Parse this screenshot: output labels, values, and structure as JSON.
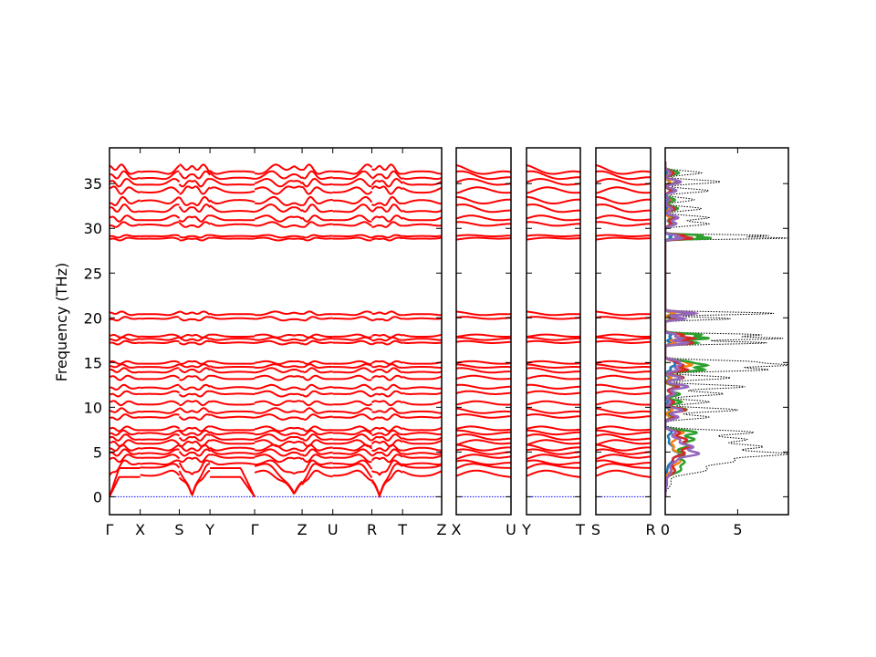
{
  "chart_data": {
    "type": "line",
    "ylabel": "Frequency (THz)",
    "ylim": [
      -2,
      39
    ],
    "y_ticks": [
      0,
      5,
      10,
      15,
      20,
      25,
      30,
      35
    ],
    "y_tick_labels": [
      "0",
      "5",
      "10",
      "15",
      "20",
      "25",
      "30",
      "35"
    ],
    "band_color": "#ff0000",
    "zero_line_color": "#0000ff",
    "panels": [
      {
        "id": "main",
        "ticks": [
          {
            "x": 0,
            "label": "Γ"
          },
          {
            "x": 0.11,
            "label": "X"
          },
          {
            "x": 0.25,
            "label": "S"
          },
          {
            "x": 0.36,
            "label": "Y"
          },
          {
            "x": 0.52,
            "label": "Γ"
          },
          {
            "x": 0.69,
            "label": "Z"
          },
          {
            "x": 0.8,
            "label": "U"
          },
          {
            "x": 0.94,
            "label": "R"
          },
          {
            "x": 1.05,
            "label": "T"
          },
          {
            "x": 1.19,
            "label": "Z"
          }
        ]
      },
      {
        "id": "xu",
        "ticks": [
          {
            "x": 0,
            "label": "X"
          },
          {
            "x": 0.25,
            "label": "U"
          }
        ]
      },
      {
        "id": "yt",
        "ticks": [
          {
            "x": 0,
            "label": "Y"
          },
          {
            "x": 0.25,
            "label": "T"
          }
        ]
      },
      {
        "id": "sr",
        "ticks": [
          {
            "x": 0,
            "label": "S"
          },
          {
            "x": 0.25,
            "label": "R"
          }
        ]
      }
    ],
    "bands": [
      {
        "gamma": 0,
        "edge": 0,
        "amp": 0,
        "mid": 0,
        "ph": 0
      },
      {
        "gamma": 0,
        "edge": 2.2,
        "amp": 0.3,
        "mid": 2.5,
        "ph": 0.3
      },
      {
        "gamma": 0,
        "edge": 3.2,
        "amp": 0.3,
        "mid": 3.1,
        "ph": 1.1
      },
      {
        "gamma": 2.4,
        "edge": 3.8,
        "amp": 0.4,
        "mid": 3.6,
        "ph": 2.0
      },
      {
        "gamma": 4.2,
        "edge": 4.5,
        "amp": 0.4,
        "mid": 4.3,
        "ph": 0.7
      },
      {
        "gamma": 4.9,
        "edge": 5.0,
        "amp": 0.4,
        "mid": 4.9,
        "ph": 1.8
      },
      {
        "gamma": 5.4,
        "edge": 5.5,
        "amp": 0.4,
        "mid": 5.4,
        "ph": 2.6
      },
      {
        "gamma": 6.0,
        "edge": 6.0,
        "amp": 0.4,
        "mid": 6.0,
        "ph": 0.4
      },
      {
        "gamma": 6.6,
        "edge": 6.5,
        "amp": 0.4,
        "mid": 6.6,
        "ph": 1.4
      },
      {
        "gamma": 7.1,
        "edge": 7.2,
        "amp": 0.3,
        "mid": 7.1,
        "ph": 2.3
      },
      {
        "gamma": 7.6,
        "edge": 7.5,
        "amp": 0.3,
        "mid": 7.6,
        "ph": 0.9
      },
      {
        "gamma": 8.8,
        "edge": 9.0,
        "amp": 0.3,
        "mid": 8.9,
        "ph": 1.6
      },
      {
        "gamma": 9.6,
        "edge": 9.5,
        "amp": 0.3,
        "mid": 9.6,
        "ph": 2.9
      },
      {
        "gamma": 10.6,
        "edge": 10.3,
        "amp": 0.3,
        "mid": 10.5,
        "ph": 0.2
      },
      {
        "gamma": 11.4,
        "edge": 11.6,
        "amp": 0.3,
        "mid": 11.5,
        "ph": 1.2
      },
      {
        "gamma": 12.2,
        "edge": 12.3,
        "amp": 0.3,
        "mid": 12.2,
        "ph": 2.1
      },
      {
        "gamma": 13.4,
        "edge": 13.2,
        "amp": 0.3,
        "mid": 13.3,
        "ph": 0.6
      },
      {
        "gamma": 14.2,
        "edge": 14.0,
        "amp": 0.3,
        "mid": 14.1,
        "ph": 1.9
      },
      {
        "gamma": 14.6,
        "edge": 14.5,
        "amp": 0.2,
        "mid": 14.6,
        "ph": 2.7
      },
      {
        "gamma": 15.1,
        "edge": 14.9,
        "amp": 0.2,
        "mid": 15.0,
        "ph": 0.8
      },
      {
        "gamma": 17.2,
        "edge": 17.3,
        "amp": 0.2,
        "mid": 17.2,
        "ph": 1.5
      },
      {
        "gamma": 17.6,
        "edge": 17.7,
        "amp": 0.2,
        "mid": 17.6,
        "ph": 2.4
      },
      {
        "gamma": 18.0,
        "edge": 17.9,
        "amp": 0.2,
        "mid": 18.0,
        "ph": 0.3
      },
      {
        "gamma": 19.8,
        "edge": 20.0,
        "amp": 0.2,
        "mid": 19.9,
        "ph": 1.7
      },
      {
        "gamma": 20.6,
        "edge": 20.4,
        "amp": 0.2,
        "mid": 20.5,
        "ph": 2.8
      },
      {
        "gamma": 28.8,
        "edge": 28.9,
        "amp": 0.15,
        "mid": 28.8,
        "ph": 0.5
      },
      {
        "gamma": 29.1,
        "edge": 29.2,
        "amp": 0.15,
        "mid": 29.1,
        "ph": 1.3
      },
      {
        "gamma": 30.3,
        "edge": 30.5,
        "amp": 0.3,
        "mid": 30.4,
        "ph": 2.2
      },
      {
        "gamma": 31.2,
        "edge": 31.0,
        "amp": 0.4,
        "mid": 31.1,
        "ph": 0.9
      },
      {
        "gamma": 32.3,
        "edge": 32.0,
        "amp": 0.5,
        "mid": 32.2,
        "ph": 1.8
      },
      {
        "gamma": 32.8,
        "edge": 33.2,
        "amp": 0.5,
        "mid": 33.0,
        "ph": 2.6
      },
      {
        "gamma": 34.5,
        "edge": 34.0,
        "amp": 0.5,
        "mid": 34.3,
        "ph": 0.1
      },
      {
        "gamma": 35.2,
        "edge": 35.0,
        "amp": 0.5,
        "mid": 35.1,
        "ph": 1.0
      },
      {
        "gamma": 36.0,
        "edge": 35.7,
        "amp": 0.5,
        "mid": 35.9,
        "ph": 2.0
      },
      {
        "gamma": 37.0,
        "edge": 36.3,
        "amp": 0.5,
        "mid": 36.6,
        "ph": 2.9
      }
    ],
    "dos": {
      "xlim": [
        0,
        8.5
      ],
      "x_ticks": [
        0,
        5
      ],
      "x_tick_labels": [
        "0",
        "5"
      ],
      "total_color": "#000000",
      "projected_colors": [
        "#1f77b4",
        "#ff7f0e",
        "#2ca02c",
        "#d62728",
        "#9467bd"
      ],
      "peaks": [
        {
          "f": 1.5,
          "h": 0.4,
          "w": 0.7
        },
        {
          "f": 3.0,
          "h": 2.8,
          "w": 0.6
        },
        {
          "f": 4.0,
          "h": 4.5,
          "w": 0.5
        },
        {
          "f": 4.8,
          "h": 8.0,
          "w": 0.4
        },
        {
          "f": 5.6,
          "h": 6.5,
          "w": 0.4
        },
        {
          "f": 6.4,
          "h": 5.5,
          "w": 0.4
        },
        {
          "f": 7.2,
          "h": 6.0,
          "w": 0.35
        },
        {
          "f": 8.9,
          "h": 3.0,
          "w": 0.3
        },
        {
          "f": 9.7,
          "h": 5.0,
          "w": 0.3
        },
        {
          "f": 10.6,
          "h": 3.0,
          "w": 0.3
        },
        {
          "f": 11.5,
          "h": 4.0,
          "w": 0.3
        },
        {
          "f": 12.3,
          "h": 5.5,
          "w": 0.3
        },
        {
          "f": 13.3,
          "h": 4.5,
          "w": 0.3
        },
        {
          "f": 14.2,
          "h": 7.0,
          "w": 0.25
        },
        {
          "f": 14.7,
          "h": 8.0,
          "w": 0.25
        },
        {
          "f": 15.1,
          "h": 5.5,
          "w": 0.25
        },
        {
          "f": 17.2,
          "h": 7.0,
          "w": 0.2
        },
        {
          "f": 17.7,
          "h": 8.0,
          "w": 0.2
        },
        {
          "f": 18.1,
          "h": 6.5,
          "w": 0.2
        },
        {
          "f": 19.9,
          "h": 4.5,
          "w": 0.2
        },
        {
          "f": 20.5,
          "h": 7.5,
          "w": 0.2
        },
        {
          "f": 28.9,
          "h": 8.3,
          "w": 0.15
        },
        {
          "f": 29.2,
          "h": 7.0,
          "w": 0.15
        },
        {
          "f": 30.5,
          "h": 3.0,
          "w": 0.3
        },
        {
          "f": 31.2,
          "h": 3.0,
          "w": 0.3
        },
        {
          "f": 32.2,
          "h": 2.5,
          "w": 0.3
        },
        {
          "f": 33.2,
          "h": 2.0,
          "w": 0.3
        },
        {
          "f": 34.2,
          "h": 3.0,
          "w": 0.3
        },
        {
          "f": 35.2,
          "h": 3.8,
          "w": 0.3
        },
        {
          "f": 36.2,
          "h": 2.5,
          "w": 0.3
        }
      ]
    }
  }
}
